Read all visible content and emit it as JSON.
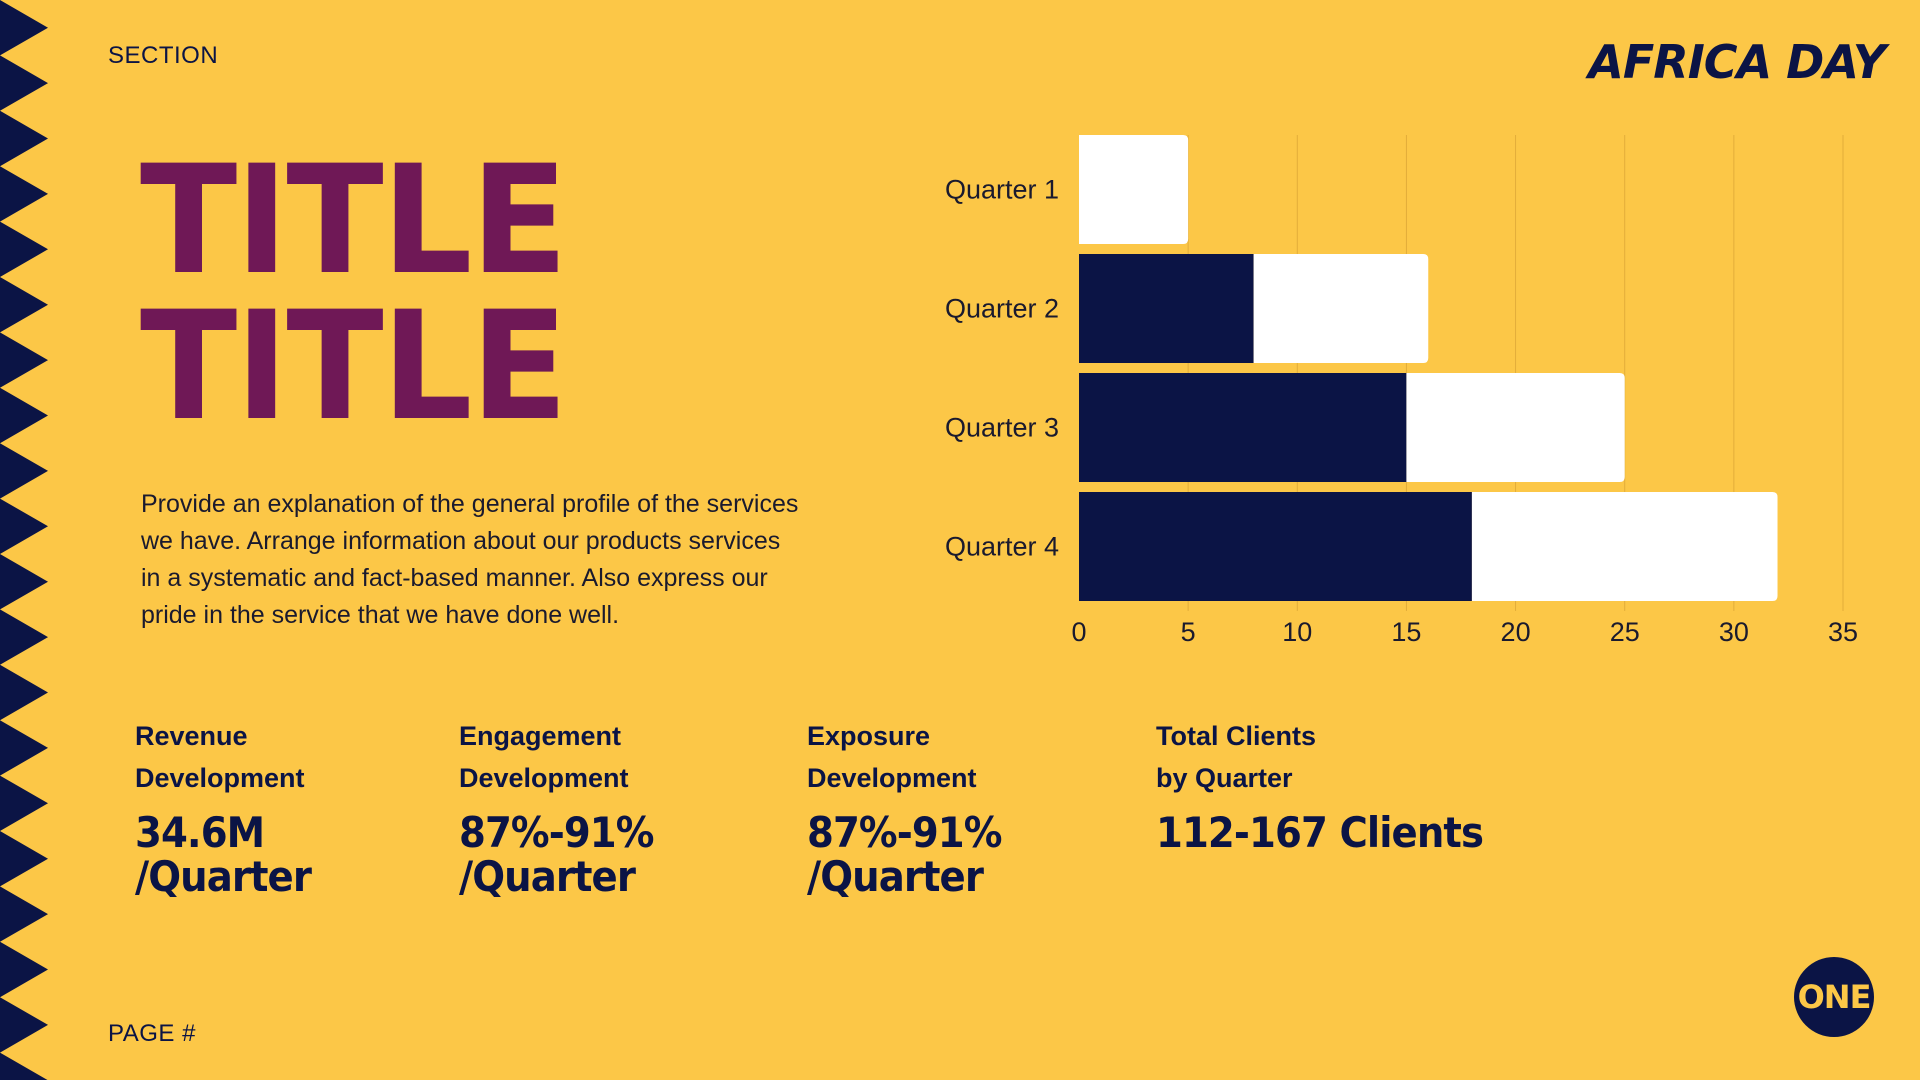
{
  "section": "SECTION",
  "page": "PAGE #",
  "logo_text": "AFRICA DAY",
  "badge_text": "ONE",
  "title_lines": [
    "TITLE",
    "TITLE"
  ],
  "description": "Provide an explanation of the general profile of the services we have. Arrange information about our products services in a systematic and fact-based manner. Also express our pride in the service that we have done well.",
  "stats": [
    {
      "label": "Revenue\nDevelopment",
      "value": "34.6M\n/Quarter"
    },
    {
      "label": "Engagement\nDevelopment",
      "value": "87%-91%\n/Quarter"
    },
    {
      "label": "Exposure\nDevelopment",
      "value": "87%-91%\n/Quarter"
    },
    {
      "label": "Total Clients\nby Quarter",
      "value": "112-167 Clients"
    }
  ],
  "colors": {
    "background": "#fcc747",
    "navy": "#0b1445",
    "title": "#6f1856",
    "bar_light": "#ffffff",
    "grid": "#e2ad3a"
  },
  "chart_data": {
    "type": "bar",
    "orientation": "horizontal",
    "stacked": true,
    "categories": [
      "Quarter 1",
      "Quarter 2",
      "Quarter 3",
      "Quarter 4"
    ],
    "series": [
      {
        "color": "#0b1445",
        "values": [
          0,
          8,
          15,
          18
        ]
      },
      {
        "color": "#ffffff",
        "values": [
          5,
          8,
          10,
          14
        ]
      }
    ],
    "xlim": [
      0,
      35
    ],
    "xticks": [
      0,
      5,
      10,
      15,
      20,
      25,
      30,
      35
    ],
    "grid": "vertical",
    "legend": "none",
    "title": "",
    "xlabel": "",
    "ylabel": ""
  }
}
